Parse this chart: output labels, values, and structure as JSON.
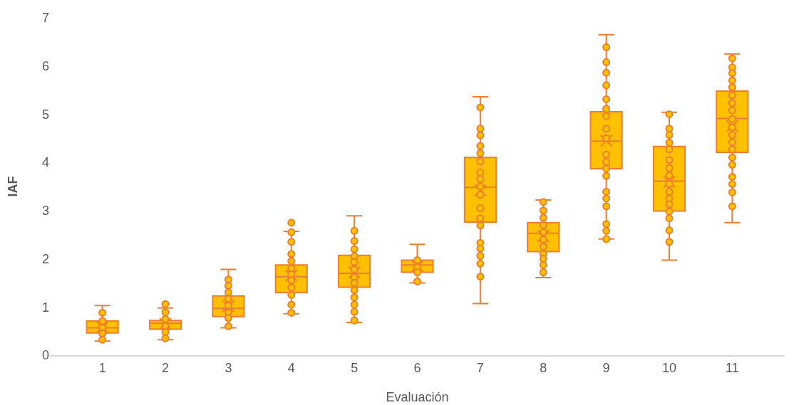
{
  "chart_data": {
    "type": "box",
    "xlabel": "Evaluación",
    "ylabel": "IAF",
    "categories": [
      "1",
      "2",
      "3",
      "4",
      "5",
      "6",
      "7",
      "8",
      "9",
      "10",
      "11"
    ],
    "ylim": [
      0,
      7
    ],
    "yticks": [
      0,
      1,
      2,
      3,
      4,
      5,
      6,
      7
    ],
    "grid": false,
    "series": [
      {
        "type": "box",
        "color": "#ffc000",
        "boxes": [
          {
            "low": 0.29,
            "q1": 0.46,
            "median": 0.57,
            "q3": 0.71,
            "high": 1.03,
            "mean": 0.58
          },
          {
            "low": 0.32,
            "q1": 0.54,
            "median": 0.66,
            "q3": 0.72,
            "high": 0.98,
            "mean": 0.65
          },
          {
            "low": 0.57,
            "q1": 0.8,
            "median": 0.97,
            "q3": 1.23,
            "high": 1.78,
            "mean": 1.02
          },
          {
            "low": 0.86,
            "q1": 1.3,
            "median": 1.63,
            "q3": 1.87,
            "high": 2.57,
            "mean": 1.65
          },
          {
            "low": 0.68,
            "q1": 1.41,
            "median": 1.7,
            "q3": 2.07,
            "high": 2.89,
            "mean": 1.72
          },
          {
            "low": 1.5,
            "q1": 1.72,
            "median": 1.87,
            "q3": 1.97,
            "high": 2.3,
            "mean": 1.85
          },
          {
            "low": 1.07,
            "q1": 2.76,
            "median": 3.48,
            "q3": 4.1,
            "high": 5.36,
            "mean": 3.42
          },
          {
            "low": 1.61,
            "q1": 2.15,
            "median": 2.53,
            "q3": 2.75,
            "high": 3.22,
            "mean": 2.47
          },
          {
            "low": 2.41,
            "q1": 3.87,
            "median": 4.44,
            "q3": 5.05,
            "high": 6.65,
            "mean": 4.45
          },
          {
            "low": 1.97,
            "q1": 2.99,
            "median": 3.61,
            "q3": 4.33,
            "high": 5.04,
            "mean": 3.6
          },
          {
            "low": 2.75,
            "q1": 4.21,
            "median": 4.91,
            "q3": 5.48,
            "high": 6.25,
            "mean": 4.75
          }
        ]
      },
      {
        "type": "scatter",
        "color": "#ffc000",
        "marker": "circle",
        "x": [
          "1",
          "1",
          "1",
          "1",
          "1",
          "2",
          "2",
          "2",
          "2",
          "2",
          "2",
          "3",
          "3",
          "3",
          "3",
          "3",
          "3",
          "3",
          "3",
          "4",
          "4",
          "4",
          "4",
          "4",
          "4",
          "4",
          "4",
          "4",
          "4",
          "4",
          "4",
          "5",
          "5",
          "5",
          "5",
          "5",
          "5",
          "5",
          "5",
          "5",
          "5",
          "5",
          "5",
          "5",
          "6",
          "6",
          "6",
          "6",
          "7",
          "7",
          "7",
          "7",
          "7",
          "7",
          "7",
          "7",
          "7",
          "7",
          "7",
          "7",
          "7",
          "7",
          "7",
          "7",
          "7",
          "7",
          "8",
          "8",
          "8",
          "8",
          "8",
          "8",
          "8",
          "8",
          "8",
          "8",
          "8",
          "9",
          "9",
          "9",
          "9",
          "9",
          "9",
          "9",
          "9",
          "9",
          "9",
          "9",
          "9",
          "9",
          "9",
          "9",
          "9",
          "9",
          "9",
          "9",
          "10",
          "10",
          "10",
          "10",
          "10",
          "10",
          "10",
          "10",
          "10",
          "10",
          "10",
          "10",
          "10",
          "10",
          "10",
          "10",
          "11",
          "11",
          "11",
          "11",
          "11",
          "11",
          "11",
          "11",
          "11",
          "11",
          "11",
          "11",
          "11",
          "11",
          "11",
          "11",
          "11",
          "11",
          "11"
        ],
        "values": [
          0.88,
          0.71,
          0.57,
          0.45,
          0.32,
          1.06,
          0.89,
          0.75,
          0.6,
          0.48,
          0.35,
          1.57,
          1.44,
          1.3,
          1.17,
          1.03,
          0.89,
          0.77,
          0.6,
          2.75,
          2.55,
          2.35,
          2.1,
          1.95,
          1.8,
          1.68,
          1.55,
          1.4,
          1.25,
          1.05,
          0.88,
          2.58,
          2.37,
          2.2,
          2.05,
          1.93,
          1.78,
          1.62,
          1.5,
          1.35,
          1.2,
          1.05,
          0.9,
          0.72,
          1.97,
          1.82,
          1.72,
          1.53,
          5.14,
          4.7,
          4.56,
          4.34,
          4.19,
          4.02,
          3.79,
          3.65,
          3.5,
          3.33,
          3.05,
          2.84,
          2.69,
          2.33,
          2.21,
          2.06,
          1.9,
          1.63,
          3.18,
          3.0,
          2.85,
          2.7,
          2.55,
          2.4,
          2.25,
          2.1,
          2.0,
          1.87,
          1.72,
          6.39,
          6.08,
          5.86,
          5.6,
          5.31,
          5.11,
          4.96,
          4.7,
          4.5,
          4.16,
          4.01,
          3.87,
          3.72,
          3.39,
          3.25,
          3.09,
          2.72,
          2.58,
          2.41,
          5.0,
          4.7,
          4.57,
          4.41,
          4.27,
          4.05,
          3.88,
          3.73,
          3.55,
          3.39,
          3.25,
          3.13,
          2.98,
          2.84,
          2.59,
          2.35,
          6.16,
          5.97,
          5.85,
          5.7,
          5.56,
          5.39,
          5.23,
          5.08,
          4.9,
          4.73,
          4.57,
          4.42,
          4.27,
          4.1,
          3.95,
          3.7,
          3.55,
          3.38,
          3.09
        ]
      }
    ]
  }
}
